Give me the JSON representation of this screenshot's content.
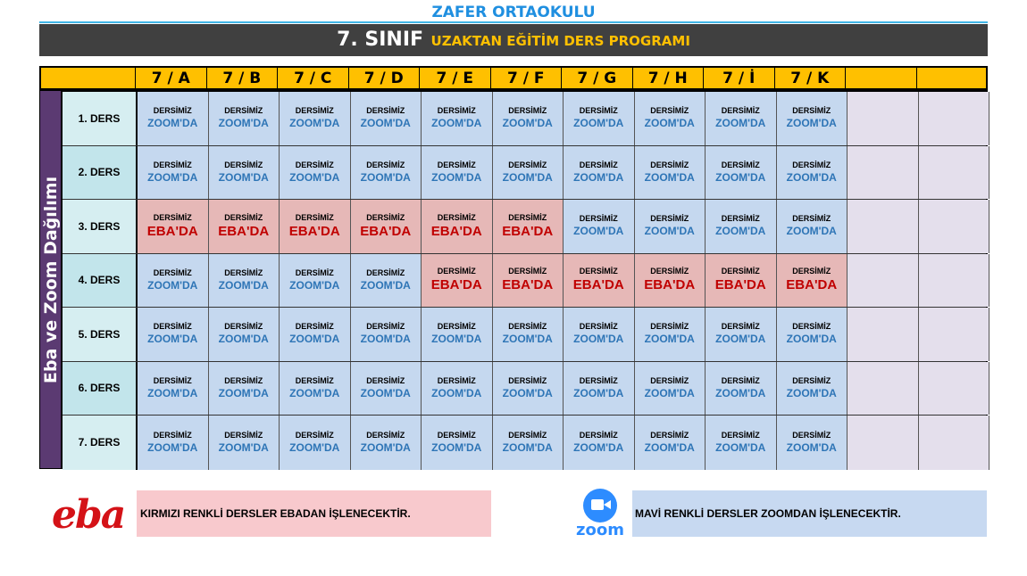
{
  "header": {
    "school_name": "ZAFER ORTAOKULU",
    "title_main": "7. SINIF",
    "title_sub": "UZAKTAN EĞİTİM DERS PROGRAMI"
  },
  "side_label": "Eba ve Zoom Dağılımı",
  "classes": [
    "7 / A",
    "7 / B",
    "7 / C",
    "7 / D",
    "7 / E",
    "7 / F",
    "7 / G",
    "7 / H",
    "7 / İ",
    "7 / K",
    "",
    ""
  ],
  "cell_top_text": "DERSİMİZ",
  "platform_labels": {
    "zoom": "ZOOM'DA",
    "eba": "EBA'DA"
  },
  "rows": [
    {
      "label": "1. DERS",
      "cells": [
        "zoom",
        "zoom",
        "zoom",
        "zoom",
        "zoom",
        "zoom",
        "zoom",
        "zoom",
        "zoom",
        "zoom",
        "empty",
        "empty"
      ]
    },
    {
      "label": "2. DERS",
      "cells": [
        "zoom",
        "zoom",
        "zoom",
        "zoom",
        "zoom",
        "zoom",
        "zoom",
        "zoom",
        "zoom",
        "zoom",
        "empty",
        "empty"
      ]
    },
    {
      "label": "3. DERS",
      "cells": [
        "eba",
        "eba",
        "eba",
        "eba",
        "eba",
        "eba",
        "zoom",
        "zoom",
        "zoom",
        "zoom",
        "empty",
        "empty"
      ]
    },
    {
      "label": "4. DERS",
      "cells": [
        "zoom",
        "zoom",
        "zoom",
        "zoom",
        "eba",
        "eba",
        "eba",
        "eba",
        "eba",
        "eba",
        "empty",
        "empty"
      ]
    },
    {
      "label": "5. DERS",
      "cells": [
        "zoom",
        "zoom",
        "zoom",
        "zoom",
        "zoom",
        "zoom",
        "zoom",
        "zoom",
        "zoom",
        "zoom",
        "empty",
        "empty"
      ]
    },
    {
      "label": "6. DERS",
      "cells": [
        "zoom",
        "zoom",
        "zoom",
        "zoom",
        "zoom",
        "zoom",
        "zoom",
        "zoom",
        "zoom",
        "zoom",
        "empty",
        "empty"
      ]
    },
    {
      "label": "7. DERS",
      "cells": [
        "zoom",
        "zoom",
        "zoom",
        "zoom",
        "zoom",
        "zoom",
        "zoom",
        "zoom",
        "zoom",
        "zoom",
        "empty",
        "empty"
      ]
    }
  ],
  "legend": {
    "eba_logo": "eba",
    "eba_text": "KIRMIZI RENKLİ DERSLER EBADAN İŞLENECEKTİR.",
    "zoom_logo": "zoom",
    "zoom_text": "MAVİ RENKLİ DERSLER ZOOMDAN İŞLENECEKTİR."
  },
  "colors": {
    "zoom_cell": "#c5d8ef",
    "eba_cell": "#e6b8b7",
    "zoom_text": "#2e75b6",
    "eba_text": "#c00000",
    "header_bg": "#ffc000",
    "title_bar": "#404040"
  }
}
